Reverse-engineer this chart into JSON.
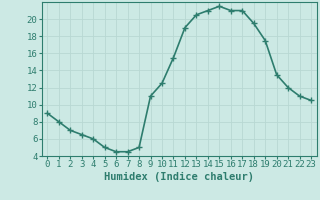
{
  "x": [
    0,
    1,
    2,
    3,
    4,
    5,
    6,
    7,
    8,
    9,
    10,
    11,
    12,
    13,
    14,
    15,
    16,
    17,
    18,
    19,
    20,
    21,
    22,
    23
  ],
  "y": [
    9,
    8,
    7,
    6.5,
    6,
    5,
    4.5,
    4.5,
    5,
    11,
    12.5,
    15.5,
    19,
    20.5,
    21,
    21.5,
    21,
    21,
    19.5,
    17.5,
    13.5,
    12,
    11,
    10.5
  ],
  "line_color": "#2e7d6e",
  "marker": "D",
  "marker_size": 2.0,
  "bg_color": "#cce9e4",
  "grid_color": "#b8d8d3",
  "xlabel": "Humidex (Indice chaleur)",
  "ylim": [
    4,
    22
  ],
  "xlim": [
    -0.5,
    23.5
  ],
  "yticks": [
    4,
    6,
    8,
    10,
    12,
    14,
    16,
    18,
    20
  ],
  "xticks": [
    0,
    1,
    2,
    3,
    4,
    5,
    6,
    7,
    8,
    9,
    10,
    11,
    12,
    13,
    14,
    15,
    16,
    17,
    18,
    19,
    20,
    21,
    22,
    23
  ],
  "xtick_labels": [
    "0",
    "1",
    "2",
    "3",
    "4",
    "5",
    "6",
    "7",
    "8",
    "9",
    "10",
    "11",
    "12",
    "13",
    "14",
    "15",
    "16",
    "17",
    "18",
    "19",
    "20",
    "21",
    "22",
    "23"
  ],
  "line_color_dark": "#1a5c52",
  "tick_fontsize": 6.5,
  "xlabel_fontsize": 7.5,
  "linewidth": 1.2
}
